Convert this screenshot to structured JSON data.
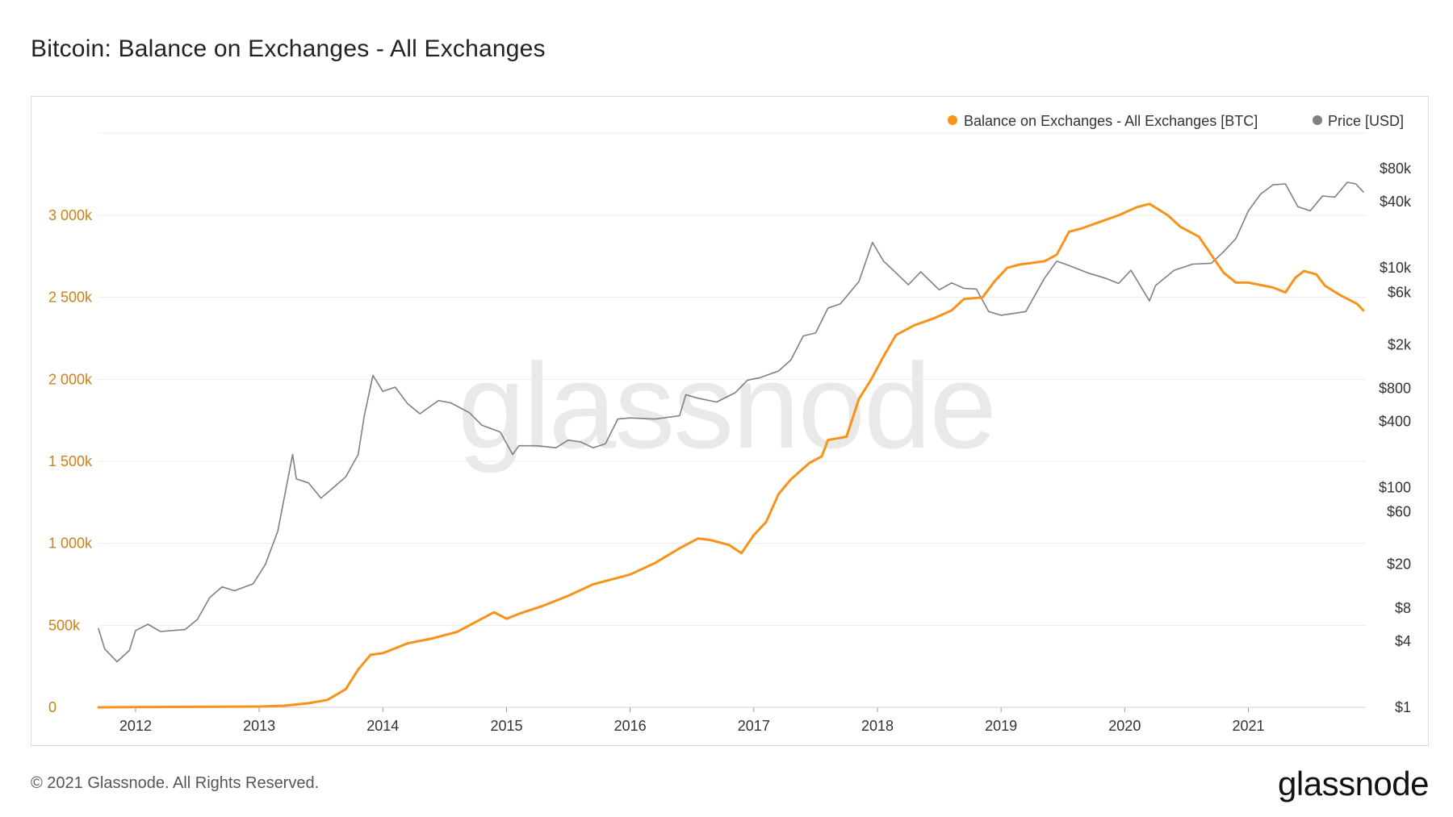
{
  "title": "Bitcoin: Balance on Exchanges - All Exchanges",
  "footer": "© 2021 Glassnode. All Rights Reserved.",
  "brand": "glassnode",
  "watermark": "glassnode",
  "colors": {
    "balance": "#f7931a",
    "price": "#808080",
    "left_axis": "#c9821a",
    "right_axis": "#333333",
    "grid": "#ececec"
  },
  "chart_data": {
    "type": "line",
    "title": "Bitcoin: Balance on Exchanges - All Exchanges",
    "grid": true,
    "legend_placement": "top-right",
    "x_ticks": [
      "2012",
      "2013",
      "2014",
      "2015",
      "2016",
      "2017",
      "2018",
      "2019",
      "2020",
      "2021"
    ],
    "x_tick_values": [
      2012,
      2013,
      2014,
      2015,
      2016,
      2017,
      2018,
      2019,
      2020,
      2021
    ],
    "xlim": [
      2011.7,
      2021.95
    ],
    "y_left": {
      "ticks": [
        "0",
        "500k",
        "1 000k",
        "1 500k",
        "2 000k",
        "2 500k",
        "3 000k"
      ],
      "tick_values": [
        0,
        500000,
        1000000,
        1500000,
        2000000,
        2500000,
        3000000
      ],
      "lim": [
        0,
        3500000
      ]
    },
    "y_right": {
      "scale": "log",
      "ticks": [
        "$1",
        "$4",
        "$8",
        "$20",
        "$60",
        "$100",
        "$400",
        "$800",
        "$2k",
        "$6k",
        "$10k",
        "$40k",
        "$80k"
      ],
      "tick_values": [
        1,
        4,
        8,
        20,
        60,
        100,
        400,
        800,
        2000,
        6000,
        10000,
        40000,
        80000
      ]
    },
    "series": [
      {
        "name": "Balance on Exchanges - All Exchanges [BTC]",
        "axis": "left",
        "points": [
          [
            2011.7,
            0
          ],
          [
            2012.0,
            1500
          ],
          [
            2012.5,
            3000
          ],
          [
            2013.0,
            5000
          ],
          [
            2013.2,
            10000
          ],
          [
            2013.4,
            25000
          ],
          [
            2013.55,
            45000
          ],
          [
            2013.7,
            110000
          ],
          [
            2013.8,
            230000
          ],
          [
            2013.9,
            320000
          ],
          [
            2014.0,
            330000
          ],
          [
            2014.2,
            390000
          ],
          [
            2014.4,
            420000
          ],
          [
            2014.6,
            460000
          ],
          [
            2014.8,
            540000
          ],
          [
            2014.9,
            580000
          ],
          [
            2015.0,
            540000
          ],
          [
            2015.1,
            570000
          ],
          [
            2015.3,
            620000
          ],
          [
            2015.5,
            680000
          ],
          [
            2015.7,
            750000
          ],
          [
            2015.9,
            790000
          ],
          [
            2016.0,
            810000
          ],
          [
            2016.2,
            880000
          ],
          [
            2016.4,
            970000
          ],
          [
            2016.55,
            1030000
          ],
          [
            2016.65,
            1020000
          ],
          [
            2016.8,
            990000
          ],
          [
            2016.9,
            940000
          ],
          [
            2017.0,
            1050000
          ],
          [
            2017.1,
            1130000
          ],
          [
            2017.2,
            1300000
          ],
          [
            2017.3,
            1390000
          ],
          [
            2017.45,
            1490000
          ],
          [
            2017.55,
            1530000
          ],
          [
            2017.6,
            1630000
          ],
          [
            2017.75,
            1650000
          ],
          [
            2017.85,
            1880000
          ],
          [
            2017.95,
            2000000
          ],
          [
            2018.05,
            2140000
          ],
          [
            2018.15,
            2270000
          ],
          [
            2018.3,
            2330000
          ],
          [
            2018.45,
            2370000
          ],
          [
            2018.6,
            2420000
          ],
          [
            2018.7,
            2490000
          ],
          [
            2018.85,
            2500000
          ],
          [
            2018.95,
            2600000
          ],
          [
            2019.05,
            2680000
          ],
          [
            2019.15,
            2700000
          ],
          [
            2019.35,
            2720000
          ],
          [
            2019.45,
            2760000
          ],
          [
            2019.55,
            2900000
          ],
          [
            2019.65,
            2920000
          ],
          [
            2019.8,
            2960000
          ],
          [
            2019.95,
            3000000
          ],
          [
            2020.1,
            3050000
          ],
          [
            2020.2,
            3070000
          ],
          [
            2020.35,
            3000000
          ],
          [
            2020.45,
            2930000
          ],
          [
            2020.6,
            2870000
          ],
          [
            2020.7,
            2760000
          ],
          [
            2020.8,
            2650000
          ],
          [
            2020.9,
            2590000
          ],
          [
            2021.0,
            2590000
          ],
          [
            2021.2,
            2560000
          ],
          [
            2021.3,
            2530000
          ],
          [
            2021.38,
            2620000
          ],
          [
            2021.45,
            2660000
          ],
          [
            2021.55,
            2640000
          ],
          [
            2021.62,
            2570000
          ],
          [
            2021.75,
            2510000
          ],
          [
            2021.88,
            2460000
          ],
          [
            2021.93,
            2420000
          ]
        ]
      },
      {
        "name": "Price [USD]",
        "axis": "right",
        "points": [
          [
            2011.7,
            5.2
          ],
          [
            2011.75,
            3.4
          ],
          [
            2011.85,
            2.6
          ],
          [
            2011.95,
            3.3
          ],
          [
            2012.0,
            5
          ],
          [
            2012.1,
            5.7
          ],
          [
            2012.2,
            4.9
          ],
          [
            2012.4,
            5.1
          ],
          [
            2012.5,
            6.3
          ],
          [
            2012.6,
            10
          ],
          [
            2012.7,
            12.5
          ],
          [
            2012.8,
            11.5
          ],
          [
            2012.95,
            13.3
          ],
          [
            2013.05,
            20
          ],
          [
            2013.15,
            40
          ],
          [
            2013.27,
            200
          ],
          [
            2013.3,
            120
          ],
          [
            2013.4,
            110
          ],
          [
            2013.5,
            80
          ],
          [
            2013.6,
            100
          ],
          [
            2013.7,
            125
          ],
          [
            2013.8,
            200
          ],
          [
            2013.85,
            450
          ],
          [
            2013.92,
            1050
          ],
          [
            2014.0,
            750
          ],
          [
            2014.1,
            820
          ],
          [
            2014.2,
            580
          ],
          [
            2014.3,
            470
          ],
          [
            2014.45,
            620
          ],
          [
            2014.55,
            590
          ],
          [
            2014.7,
            480
          ],
          [
            2014.8,
            370
          ],
          [
            2014.95,
            320
          ],
          [
            2015.05,
            200
          ],
          [
            2015.1,
            240
          ],
          [
            2015.25,
            240
          ],
          [
            2015.4,
            230
          ],
          [
            2015.5,
            270
          ],
          [
            2015.6,
            260
          ],
          [
            2015.7,
            230
          ],
          [
            2015.8,
            250
          ],
          [
            2015.9,
            420
          ],
          [
            2016.0,
            430
          ],
          [
            2016.2,
            420
          ],
          [
            2016.4,
            450
          ],
          [
            2016.45,
            700
          ],
          [
            2016.55,
            650
          ],
          [
            2016.7,
            600
          ],
          [
            2016.85,
            730
          ],
          [
            2016.95,
            950
          ],
          [
            2017.05,
            1000
          ],
          [
            2017.2,
            1150
          ],
          [
            2017.3,
            1450
          ],
          [
            2017.4,
            2400
          ],
          [
            2017.5,
            2550
          ],
          [
            2017.6,
            4300
          ],
          [
            2017.7,
            4700
          ],
          [
            2017.85,
            7500
          ],
          [
            2017.96,
            17000
          ],
          [
            2018.05,
            11500
          ],
          [
            2018.15,
            9000
          ],
          [
            2018.25,
            7000
          ],
          [
            2018.35,
            9200
          ],
          [
            2018.5,
            6300
          ],
          [
            2018.6,
            7300
          ],
          [
            2018.7,
            6500
          ],
          [
            2018.8,
            6400
          ],
          [
            2018.9,
            4000
          ],
          [
            2019.0,
            3700
          ],
          [
            2019.2,
            4000
          ],
          [
            2019.35,
            8000
          ],
          [
            2019.45,
            11500
          ],
          [
            2019.55,
            10500
          ],
          [
            2019.7,
            9000
          ],
          [
            2019.85,
            8000
          ],
          [
            2019.95,
            7200
          ],
          [
            2020.05,
            9500
          ],
          [
            2020.2,
            5000
          ],
          [
            2020.25,
            6900
          ],
          [
            2020.4,
            9500
          ],
          [
            2020.55,
            10800
          ],
          [
            2020.7,
            11000
          ],
          [
            2020.8,
            14000
          ],
          [
            2020.9,
            18500
          ],
          [
            2021.0,
            33000
          ],
          [
            2021.1,
            47000
          ],
          [
            2021.2,
            57000
          ],
          [
            2021.3,
            58000
          ],
          [
            2021.4,
            36000
          ],
          [
            2021.5,
            33000
          ],
          [
            2021.6,
            45000
          ],
          [
            2021.7,
            44000
          ],
          [
            2021.8,
            60000
          ],
          [
            2021.87,
            58000
          ],
          [
            2021.93,
            49000
          ]
        ]
      }
    ]
  }
}
